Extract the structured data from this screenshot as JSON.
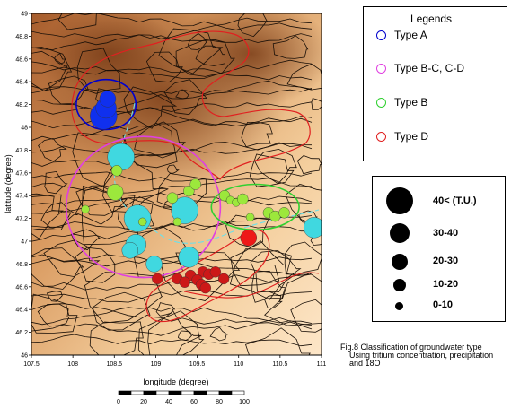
{
  "map": {
    "xlabel": "longitude (degree)",
    "ylabel": "latitude (degree)",
    "x_ticks": [
      "107.5",
      "108",
      "108.5",
      "109",
      "109.5",
      "110",
      "110.5",
      "111"
    ],
    "y_ticks": [
      "49",
      "48.8",
      "48.6",
      "48.4",
      "48.2",
      "48",
      "47.8",
      "47.6",
      "47.4",
      "47.2",
      "47",
      "46.8",
      "46.6",
      "46.4",
      "46.2",
      "46"
    ],
    "extent": {
      "lon": [
        107.5,
        111.0
      ],
      "lat": [
        46.0,
        49.0
      ]
    },
    "scale_bar": {
      "labels": [
        "0",
        "20",
        "40",
        "60",
        "80",
        "100"
      ]
    },
    "type_outlines": [
      {
        "type": "Type A",
        "color": "#0000cc",
        "center": [
          108.4,
          48.2
        ],
        "radius_lon": 0.36,
        "radius_lat": 0.22
      },
      {
        "type": "Type B-C, C-D",
        "color": "#e040e0",
        "center": [
          108.85,
          47.3
        ],
        "radius_lon": 0.93,
        "radius_lat": 0.62
      },
      {
        "type": "Type B",
        "color": "#30d030",
        "center": [
          110.2,
          47.3
        ],
        "radius_lon": 0.53,
        "radius_lat": 0.2
      }
    ],
    "wells": [
      {
        "lon": 108.37,
        "lat": 48.1,
        "tu_class": "40<",
        "color": "#1030ee"
      },
      {
        "lon": 108.4,
        "lat": 48.17,
        "tu_class": "30-40",
        "color": "#1030ee"
      },
      {
        "lon": 108.42,
        "lat": 48.25,
        "tu_class": "20-30",
        "color": "#1030ee"
      },
      {
        "lon": 108.58,
        "lat": 47.74,
        "tu_class": "40<",
        "color": "#40d8e0"
      },
      {
        "lon": 108.53,
        "lat": 47.62,
        "tu_class": "10-20",
        "color": "#9ce83c"
      },
      {
        "lon": 108.78,
        "lat": 47.2,
        "tu_class": "40<",
        "color": "#40d8e0"
      },
      {
        "lon": 108.76,
        "lat": 46.97,
        "tu_class": "30-40",
        "color": "#40d8e0"
      },
      {
        "lon": 108.69,
        "lat": 46.92,
        "tu_class": "20-30",
        "color": "#40d8e0"
      },
      {
        "lon": 108.98,
        "lat": 46.8,
        "tu_class": "20-30",
        "color": "#40d8e0"
      },
      {
        "lon": 109.35,
        "lat": 47.27,
        "tu_class": "40<",
        "color": "#40d8e0"
      },
      {
        "lon": 109.4,
        "lat": 46.86,
        "tu_class": "30-40",
        "color": "#40d8e0"
      },
      {
        "lon": 110.91,
        "lat": 47.12,
        "tu_class": "30-40",
        "color": "#40d8e0"
      },
      {
        "lon": 108.51,
        "lat": 47.43,
        "tu_class": "20-30",
        "color": "#9ce83c"
      },
      {
        "lon": 108.15,
        "lat": 47.28,
        "tu_class": "0-10",
        "color": "#9ce83c"
      },
      {
        "lon": 108.84,
        "lat": 47.17,
        "tu_class": "0-10",
        "color": "#9ce83c"
      },
      {
        "lon": 109.2,
        "lat": 47.38,
        "tu_class": "10-20",
        "color": "#9ce83c"
      },
      {
        "lon": 109.26,
        "lat": 47.17,
        "tu_class": "0-10",
        "color": "#9ce83c"
      },
      {
        "lon": 109.4,
        "lat": 47.44,
        "tu_class": "10-20",
        "color": "#9ce83c"
      },
      {
        "lon": 109.48,
        "lat": 47.5,
        "tu_class": "10-20",
        "color": "#9ce83c"
      },
      {
        "lon": 109.83,
        "lat": 47.4,
        "tu_class": "10-20",
        "color": "#9ce83c"
      },
      {
        "lon": 109.9,
        "lat": 47.36,
        "tu_class": "0-10",
        "color": "#9ce83c"
      },
      {
        "lon": 109.97,
        "lat": 47.34,
        "tu_class": "0-10",
        "color": "#9ce83c"
      },
      {
        "lon": 110.05,
        "lat": 47.37,
        "tu_class": "10-20",
        "color": "#9ce83c"
      },
      {
        "lon": 110.14,
        "lat": 47.21,
        "tu_class": "0-10",
        "color": "#9ce83c"
      },
      {
        "lon": 110.36,
        "lat": 47.25,
        "tu_class": "10-20",
        "color": "#9ce83c"
      },
      {
        "lon": 110.44,
        "lat": 47.22,
        "tu_class": "10-20",
        "color": "#9ce83c"
      },
      {
        "lon": 110.55,
        "lat": 47.25,
        "tu_class": "10-20",
        "color": "#9ce83c"
      },
      {
        "lon": 110.12,
        "lat": 47.03,
        "tu_class": "20-30",
        "color": "#ee1818"
      },
      {
        "lon": 109.42,
        "lat": 46.7,
        "tu_class": "10-20",
        "color": "#cc1818"
      },
      {
        "lon": 109.57,
        "lat": 46.73,
        "tu_class": "10-20",
        "color": "#cc1818"
      },
      {
        "lon": 109.64,
        "lat": 46.71,
        "tu_class": "10-20",
        "color": "#cc1818"
      },
      {
        "lon": 109.72,
        "lat": 46.73,
        "tu_class": "10-20",
        "color": "#cc1818"
      },
      {
        "lon": 109.26,
        "lat": 46.67,
        "tu_class": "10-20",
        "color": "#cc1818"
      },
      {
        "lon": 109.35,
        "lat": 46.64,
        "tu_class": "10-20",
        "color": "#cc1818"
      },
      {
        "lon": 109.5,
        "lat": 46.66,
        "tu_class": "10-20",
        "color": "#cc1818"
      },
      {
        "lon": 109.55,
        "lat": 46.62,
        "tu_class": "10-20",
        "color": "#cc1818"
      },
      {
        "lon": 109.6,
        "lat": 46.59,
        "tu_class": "10-20",
        "color": "#cc1818"
      },
      {
        "lon": 109.82,
        "lat": 46.67,
        "tu_class": "10-20",
        "color": "#cc1818"
      },
      {
        "lon": 109.02,
        "lat": 46.67,
        "tu_class": "10-20",
        "color": "#cc1818"
      }
    ]
  },
  "legend": {
    "title": "Legends",
    "items": [
      {
        "label": "Type A",
        "color": "#0000cc"
      },
      {
        "label": "Type B-C, C-D",
        "color": "#e040e0"
      },
      {
        "label": "Type B",
        "color": "#30d030"
      },
      {
        "label": "Type D",
        "color": "#e02020"
      }
    ]
  },
  "size_legend": {
    "items": [
      {
        "label": "40< (T.U.)"
      },
      {
        "label": "30-40"
      },
      {
        "label": "20-30"
      },
      {
        "label": "10-20"
      },
      {
        "label": "0-10"
      }
    ]
  },
  "caption": {
    "line1": "Fig.8 Classification of groundwater type",
    "line2": "Using tritium concentration, precipitation",
    "line3": "and      18O"
  }
}
